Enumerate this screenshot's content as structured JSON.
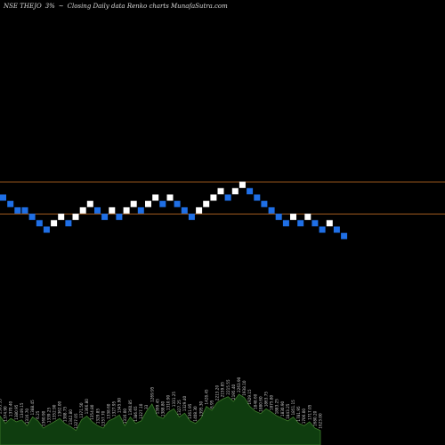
{
  "header": {
    "symbol": "NSE THEJO",
    "percent": "3%",
    "arrow": "~",
    "description": "Closing Daily data  Renko  charts MunafaSutra.com"
  },
  "colors": {
    "background": "#000000",
    "up_brick": "#ffffff",
    "down_brick": "#1f6fe6",
    "resistance_line": "#a05a1e",
    "volume_fill": "#0f3d0f",
    "volume_outline": "#3e7a2c",
    "volume_label": "#c8c8c8"
  },
  "chart_data": {
    "type": "renko",
    "title": "NSE THEJO 3% Closing Daily data Renko charts",
    "bricks": [
      {
        "dir": "down",
        "level": 0
      },
      {
        "dir": "down",
        "level": -1
      },
      {
        "dir": "down",
        "level": -2
      },
      {
        "dir": "down",
        "level": -2
      },
      {
        "dir": "down",
        "level": -3
      },
      {
        "dir": "down",
        "level": -4
      },
      {
        "dir": "down",
        "level": -5
      },
      {
        "dir": "up",
        "level": -4
      },
      {
        "dir": "up",
        "level": -3
      },
      {
        "dir": "down",
        "level": -4
      },
      {
        "dir": "up",
        "level": -3
      },
      {
        "dir": "up",
        "level": -2
      },
      {
        "dir": "up",
        "level": -1
      },
      {
        "dir": "down",
        "level": -2
      },
      {
        "dir": "down",
        "level": -3
      },
      {
        "dir": "up",
        "level": -2
      },
      {
        "dir": "down",
        "level": -3
      },
      {
        "dir": "up",
        "level": -2
      },
      {
        "dir": "up",
        "level": -1
      },
      {
        "dir": "down",
        "level": -2
      },
      {
        "dir": "up",
        "level": -1
      },
      {
        "dir": "up",
        "level": 0
      },
      {
        "dir": "down",
        "level": -1
      },
      {
        "dir": "up",
        "level": 0
      },
      {
        "dir": "down",
        "level": -1
      },
      {
        "dir": "down",
        "level": -2
      },
      {
        "dir": "down",
        "level": -3
      },
      {
        "dir": "up",
        "level": -2
      },
      {
        "dir": "up",
        "level": -1
      },
      {
        "dir": "up",
        "level": 0
      },
      {
        "dir": "up",
        "level": 1
      },
      {
        "dir": "down",
        "level": 0
      },
      {
        "dir": "up",
        "level": 1
      },
      {
        "dir": "up",
        "level": 2
      },
      {
        "dir": "down",
        "level": 1
      },
      {
        "dir": "down",
        "level": 0
      },
      {
        "dir": "down",
        "level": -1
      },
      {
        "dir": "down",
        "level": -2
      },
      {
        "dir": "down",
        "level": -3
      },
      {
        "dir": "down",
        "level": -4
      },
      {
        "dir": "up",
        "level": -3
      },
      {
        "dir": "down",
        "level": -4
      },
      {
        "dir": "up",
        "level": -3
      },
      {
        "dir": "down",
        "level": -4
      },
      {
        "dir": "down",
        "level": -5
      },
      {
        "dir": "up",
        "level": -4
      },
      {
        "dir": "down",
        "level": -5
      },
      {
        "dir": "down",
        "level": -6
      }
    ],
    "horizontal_lines": [
      2,
      -3
    ],
    "volume": {
      "values": [
        60,
        45,
        55,
        48,
        52,
        40,
        58,
        50,
        35,
        42,
        48,
        55,
        44,
        38,
        30,
        52,
        60,
        48,
        40,
        35,
        50,
        55,
        62,
        40,
        58,
        45,
        50,
        70,
        85,
        60,
        55,
        68,
        75,
        58,
        66,
        50,
        45,
        55,
        80,
        72,
        88,
        95,
        100,
        90,
        105,
        98,
        80,
        70,
        65,
        75,
        68,
        60,
        55,
        50,
        58,
        45,
        40,
        48,
        35,
        30
      ],
      "labels": [
        "1393.35",
        "1374.90",
        "1370.40",
        "1380.95",
        "1349.15",
        "1316.70",
        "1388.45",
        "6.25",
        "1360.90",
        "1339.25",
        "1352.90",
        "1362.00",
        "1388.75",
        "1342.80",
        "1327.05",
        "1371.50",
        "1366.80",
        "1354.80",
        "1329.85",
        "1357.70",
        "1338.60",
        "1327.95",
        "1345.90",
        "1316.00",
        "1360.85",
        "1386.65",
        "1327.10",
        "33",
        "1269.95",
        "1399.45",
        "1388.80",
        "1310.90",
        "1331.25",
        "1327.25",
        "1329.40",
        "1361.95",
        "1408.30",
        "1395.30",
        "1428.45",
        "6.95",
        "2213.20",
        "2159.85",
        "2215.55",
        "2195.40",
        "2263.90",
        "1938.10",
        "1929.15",
        "1848.60",
        "1880.60",
        "1863.75",
        "1875.80",
        "1883.25",
        "1830.90",
        "1843.25",
        "1851.15",
        "1781.95",
        "1706.00",
        "1717.05",
        "1680.20",
        "1623.00"
      ]
    }
  }
}
